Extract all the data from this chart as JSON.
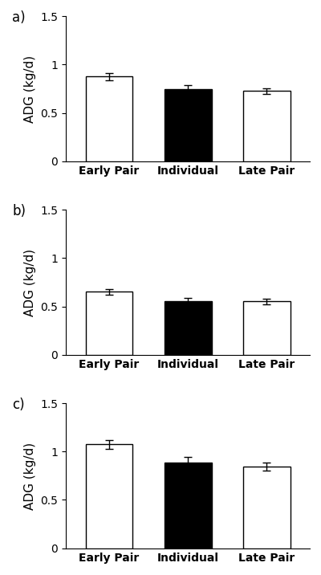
{
  "panels": [
    {
      "label": "a)",
      "categories": [
        "Early Pair",
        "Individual",
        "Late Pair"
      ],
      "values": [
        0.875,
        0.745,
        0.725
      ],
      "errors": [
        0.038,
        0.042,
        0.03
      ],
      "bar_colors": [
        "#ffffff",
        "#000000",
        "#ffffff"
      ],
      "bar_edgecolors": [
        "#000000",
        "#000000",
        "#000000"
      ]
    },
    {
      "label": "b)",
      "categories": [
        "Early Pair",
        "Individual",
        "Late Pair"
      ],
      "values": [
        0.65,
        0.555,
        0.55
      ],
      "errors": [
        0.032,
        0.035,
        0.028
      ],
      "bar_colors": [
        "#ffffff",
        "#000000",
        "#ffffff"
      ],
      "bar_edgecolors": [
        "#000000",
        "#000000",
        "#000000"
      ]
    },
    {
      "label": "c)",
      "categories": [
        "Early Pair",
        "Individual",
        "Late Pair"
      ],
      "values": [
        1.075,
        0.885,
        0.845
      ],
      "errors": [
        0.045,
        0.06,
        0.04
      ],
      "bar_colors": [
        "#ffffff",
        "#000000",
        "#ffffff"
      ],
      "bar_edgecolors": [
        "#000000",
        "#000000",
        "#000000"
      ]
    }
  ],
  "ylabel": "ADG (kg/d)",
  "ylim": [
    0,
    1.5
  ],
  "yticks": [
    0,
    0.5,
    1.0,
    1.5
  ],
  "ytick_labels": [
    "0",
    "0.5",
    "1",
    "1.5"
  ],
  "bar_width": 0.6,
  "background_color": "#ffffff",
  "ylabel_fontsize": 11,
  "tick_fontsize": 10,
  "xticklabel_fontsize": 10,
  "panel_label_fontsize": 12
}
